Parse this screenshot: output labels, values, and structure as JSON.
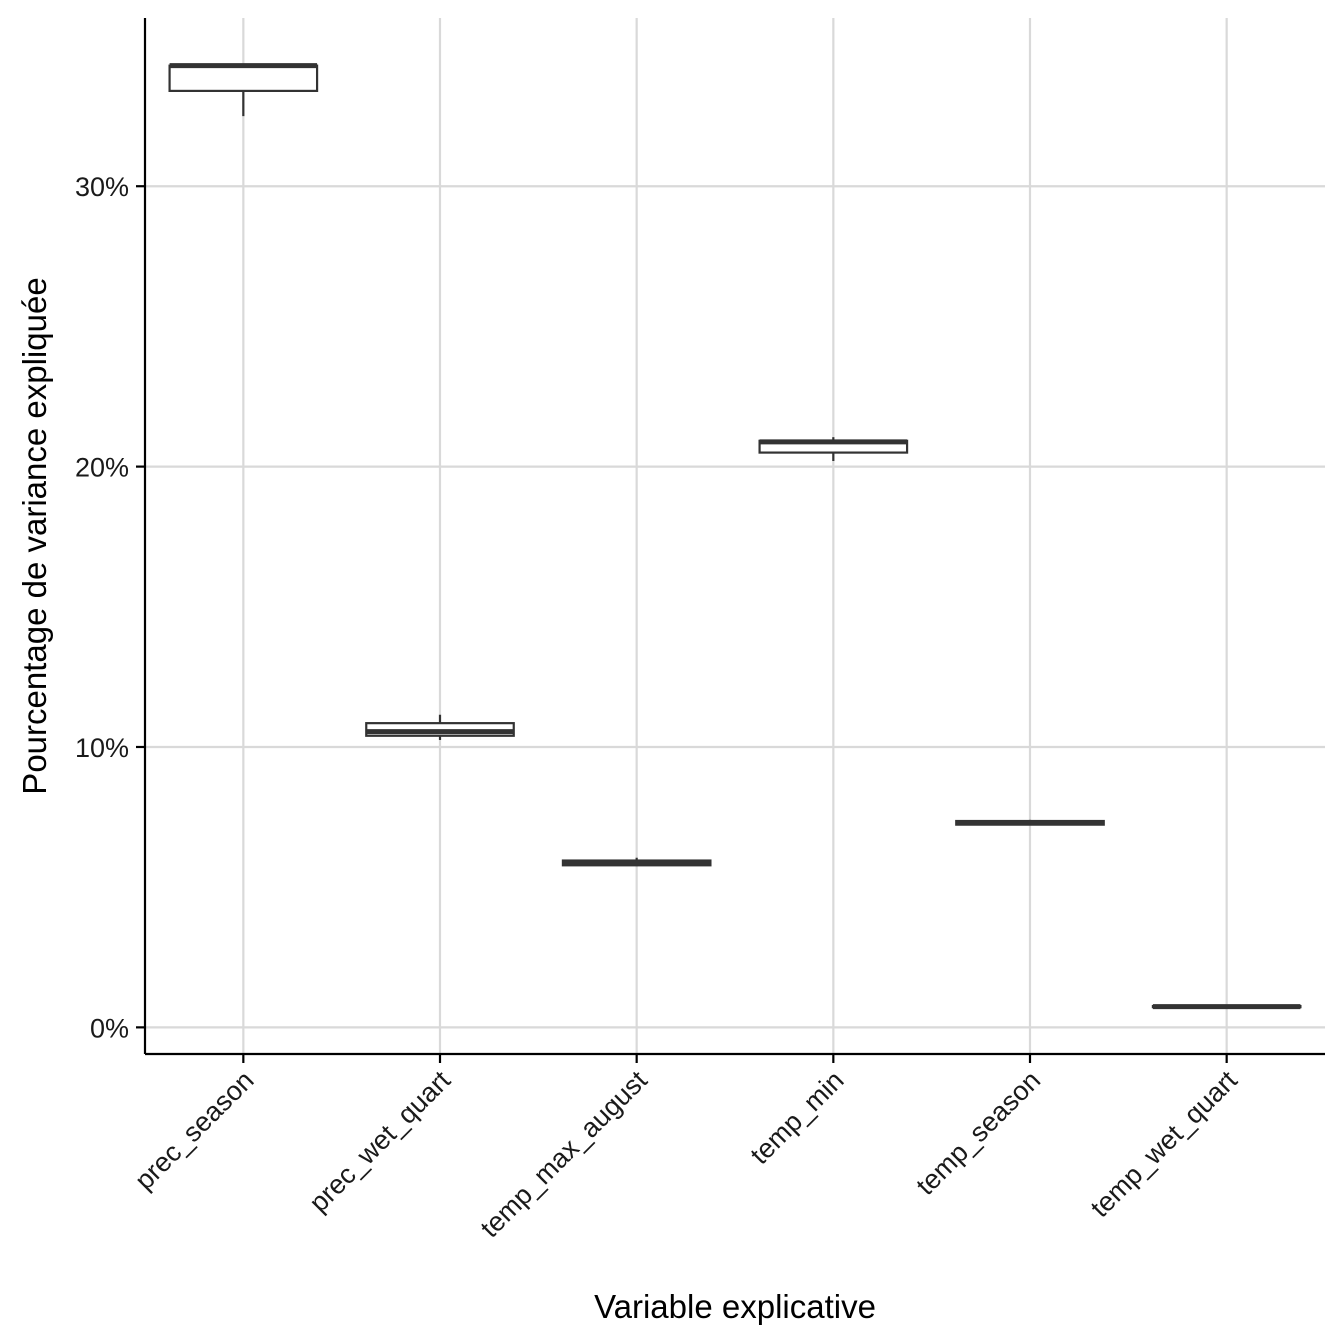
{
  "chart_data": {
    "type": "boxplot",
    "title": "",
    "xlabel": "Variable explicative",
    "ylabel": "Pourcentage de variance expliquée",
    "ylim": [
      -0.95,
      36
    ],
    "yticks": [
      0,
      10,
      20,
      30
    ],
    "ytick_labels": [
      "0%",
      "10%",
      "20%",
      "30%"
    ],
    "grid": true,
    "categories": [
      "prec_season",
      "prec_wet_quart",
      "temp_max_august",
      "temp_min",
      "temp_season",
      "temp_wet_quart"
    ],
    "boxes": [
      {
        "category": "prec_season",
        "whisker_low": 32.5,
        "q1": 33.4,
        "median": 34.3,
        "q3": 34.3,
        "whisker_high": 34.3
      },
      {
        "category": "prec_wet_quart",
        "whisker_low": 10.25,
        "q1": 10.4,
        "median": 10.55,
        "q3": 10.85,
        "whisker_high": 11.15
      },
      {
        "category": "temp_max_august",
        "whisker_low": 5.75,
        "q1": 5.78,
        "median": 5.87,
        "q3": 5.95,
        "whisker_high": 6.05
      },
      {
        "category": "temp_min",
        "whisker_low": 20.2,
        "q1": 20.5,
        "median": 20.88,
        "q3": 20.92,
        "whisker_high": 21.05
      },
      {
        "category": "temp_season",
        "whisker_low": 7.2,
        "q1": 7.23,
        "median": 7.3,
        "q3": 7.36,
        "whisker_high": 7.4
      },
      {
        "category": "temp_wet_quart",
        "whisker_low": 0.7,
        "q1": 0.72,
        "median": 0.74,
        "q3": 0.76,
        "whisker_high": 0.78
      }
    ],
    "colors": {
      "box_stroke": "#333333",
      "box_fill": "#ffffff",
      "grid": "#d9d9d9",
      "axis": "#000000"
    }
  }
}
